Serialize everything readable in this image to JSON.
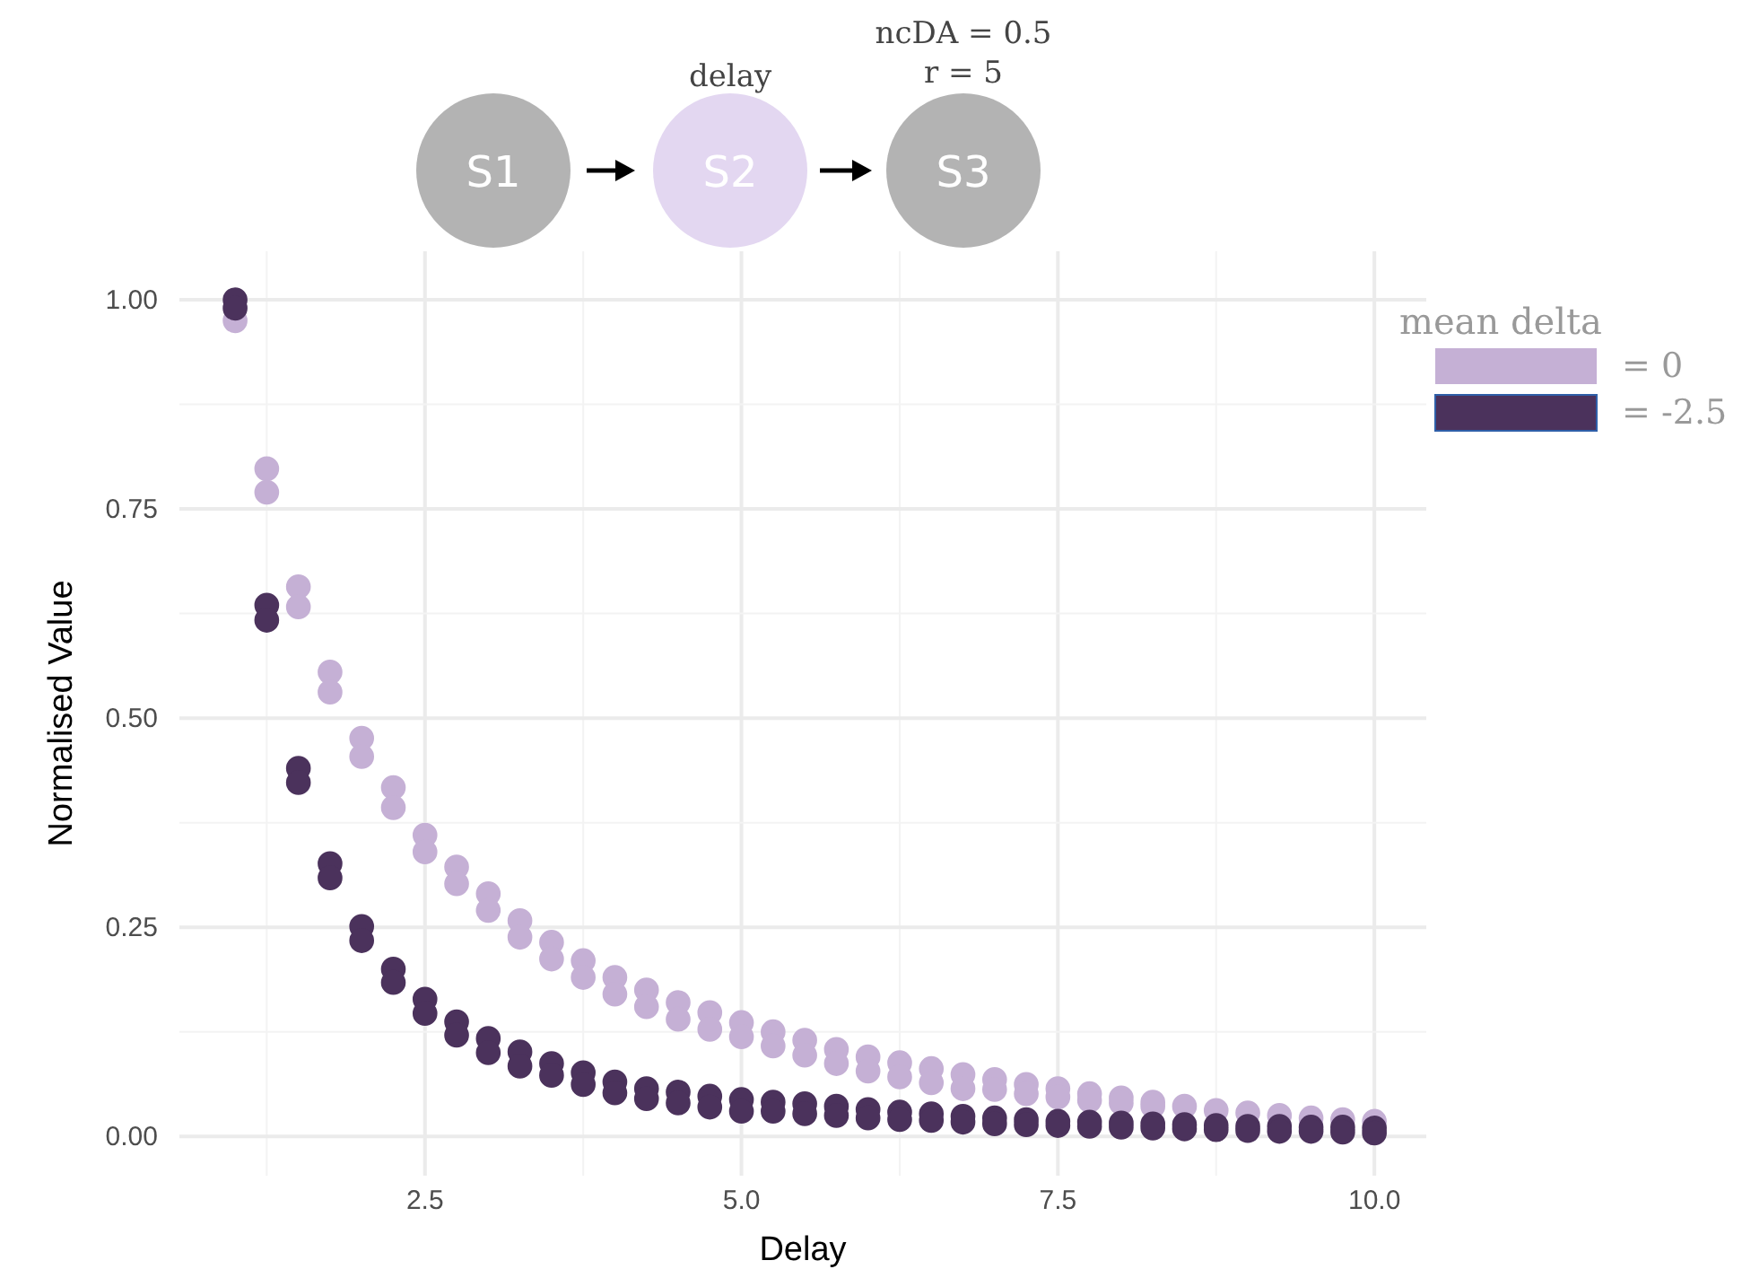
{
  "chart_data": {
    "type": "scatter",
    "xlabel": "Delay",
    "ylabel": "Normalised Value",
    "legend_title": "mean delta",
    "legend": "right",
    "grid": true,
    "marker": "circle",
    "annotations": [
      "S1",
      "S2",
      "S3",
      "delay",
      "ncDA = 0.5",
      "r = 5"
    ],
    "xlim": [
      0.56,
      10.41
    ],
    "ylim": [
      -0.047,
      1.058
    ],
    "xticks": [
      {
        "value": 2.5,
        "label": "2.5"
      },
      {
        "value": 5,
        "label": "5.0"
      },
      {
        "value": 7.5,
        "label": "7.5"
      },
      {
        "value": 10,
        "label": "10.0"
      }
    ],
    "yticks": [
      {
        "value": 0,
        "label": "0.00"
      },
      {
        "value": 0.25,
        "label": "0.25"
      },
      {
        "value": 0.5,
        "label": "0.50"
      },
      {
        "value": 0.75,
        "label": "0.75"
      },
      {
        "value": 1,
        "label": "1.00"
      }
    ],
    "series": [
      {
        "name": "= 0",
        "color": "#c5b0d5",
        "x": [
          1,
          1.25,
          1.25,
          1.5,
          1.5,
          1.75,
          1.75,
          2,
          2,
          2.25,
          2.25,
          2.5,
          2.5,
          2.75,
          2.75,
          3,
          3,
          3.25,
          3.25,
          3.5,
          3.5,
          3.75,
          3.75,
          4,
          4,
          4.25,
          4.25,
          4.5,
          4.5,
          4.75,
          4.75,
          5,
          5,
          5.25,
          5.25,
          5.5,
          5.5,
          5.75,
          5.75,
          6,
          6,
          6.25,
          6.25,
          6.5,
          6.5,
          6.75,
          6.75,
          7,
          7,
          7.25,
          7.25,
          7.5,
          7.5,
          7.75,
          7.75,
          8,
          8,
          8.25,
          8.25,
          8.5,
          8.75,
          9,
          9.25,
          9.5,
          9.75,
          10
        ],
        "values": [
          0.975,
          0.798,
          0.77,
          0.657,
          0.633,
          0.555,
          0.531,
          0.476,
          0.454,
          0.417,
          0.393,
          0.36,
          0.34,
          0.322,
          0.302,
          0.29,
          0.27,
          0.258,
          0.238,
          0.232,
          0.212,
          0.21,
          0.19,
          0.19,
          0.17,
          0.175,
          0.155,
          0.16,
          0.14,
          0.148,
          0.128,
          0.136,
          0.119,
          0.125,
          0.108,
          0.115,
          0.097,
          0.104,
          0.087,
          0.095,
          0.078,
          0.088,
          0.071,
          0.081,
          0.064,
          0.074,
          0.057,
          0.068,
          0.056,
          0.062,
          0.051,
          0.057,
          0.047,
          0.051,
          0.043,
          0.046,
          0.04,
          0.041,
          0.036,
          0.036,
          0.031,
          0.028,
          0.025,
          0.022,
          0.02,
          0.018
        ]
      },
      {
        "name": "= -2.5",
        "color": "#4b325c",
        "x": [
          1,
          1,
          1.25,
          1.25,
          1.5,
          1.5,
          1.75,
          1.75,
          2,
          2,
          2.25,
          2.25,
          2.5,
          2.5,
          2.75,
          2.75,
          3,
          3,
          3.25,
          3.25,
          3.5,
          3.5,
          3.75,
          3.75,
          4,
          4,
          4.25,
          4.25,
          4.5,
          4.5,
          4.75,
          4.75,
          5,
          5,
          5.25,
          5.25,
          5.5,
          5.5,
          5.75,
          5.75,
          6,
          6,
          6.25,
          6.25,
          6.5,
          6.5,
          6.75,
          6.75,
          7,
          7,
          7.25,
          7.25,
          7.5,
          7.5,
          7.75,
          7.75,
          8,
          8,
          8.25,
          8.25,
          8.5,
          8.5,
          8.75,
          8.75,
          9,
          9,
          9.25,
          9.25,
          9.5,
          9.5,
          9.75,
          9.75,
          10,
          10
        ],
        "values": [
          1,
          0.99,
          0.635,
          0.617,
          0.44,
          0.423,
          0.326,
          0.309,
          0.251,
          0.234,
          0.2,
          0.184,
          0.164,
          0.147,
          0.137,
          0.121,
          0.117,
          0.1,
          0.101,
          0.084,
          0.087,
          0.073,
          0.076,
          0.062,
          0.065,
          0.052,
          0.057,
          0.045,
          0.053,
          0.04,
          0.048,
          0.035,
          0.044,
          0.03,
          0.041,
          0.03,
          0.039,
          0.027,
          0.036,
          0.025,
          0.032,
          0.022,
          0.029,
          0.02,
          0.027,
          0.019,
          0.024,
          0.017,
          0.022,
          0.015,
          0.02,
          0.014,
          0.018,
          0.013,
          0.017,
          0.012,
          0.016,
          0.011,
          0.015,
          0.01,
          0.014,
          0.009,
          0.013,
          0.008,
          0.012,
          0.007,
          0.012,
          0.006,
          0.011,
          0.006,
          0.011,
          0.005,
          0.01,
          0.004
        ]
      }
    ]
  }
}
